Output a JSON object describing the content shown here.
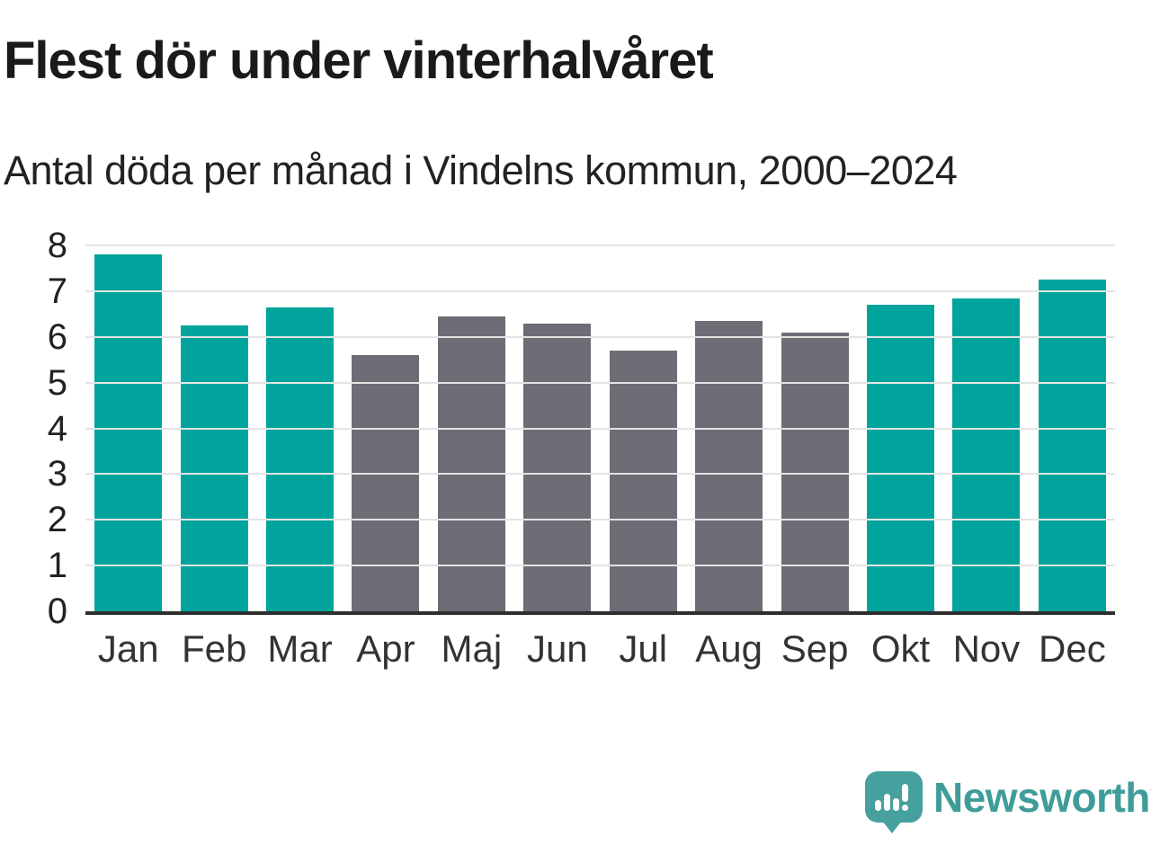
{
  "header": {
    "title": "Flest dör under vinterhalvåret",
    "subtitle": "Antal döda per månad i Vindelns kommun, 2000–2024"
  },
  "chart_data": {
    "type": "bar",
    "title": "Flest dör under vinterhalvåret",
    "subtitle": "Antal döda per månad i Vindelns kommun, 2000–2024",
    "categories": [
      "Jan",
      "Feb",
      "Mar",
      "Apr",
      "Maj",
      "Jun",
      "Jul",
      "Aug",
      "Sep",
      "Okt",
      "Nov",
      "Dec"
    ],
    "values": [
      7.8,
      6.25,
      6.65,
      5.6,
      6.45,
      6.3,
      5.7,
      6.35,
      6.1,
      6.7,
      6.85,
      7.25
    ],
    "bar_color_keys": [
      "winter",
      "winter",
      "winter",
      "summer",
      "summer",
      "summer",
      "summer",
      "summer",
      "summer",
      "winter",
      "winter",
      "winter"
    ],
    "palette": {
      "winter": "#00a49c",
      "summer": "#6e6d76"
    },
    "xlabel": "",
    "ylabel": "",
    "ylim": [
      0,
      8
    ],
    "yticks": [
      0,
      1,
      2,
      3,
      4,
      5,
      6,
      7,
      8
    ],
    "grid": true,
    "gridline_color": "#e3e3e3",
    "axis_color": "#2e2e2e",
    "legend": null
  },
  "footer": {
    "brand": "Newsworthy"
  }
}
